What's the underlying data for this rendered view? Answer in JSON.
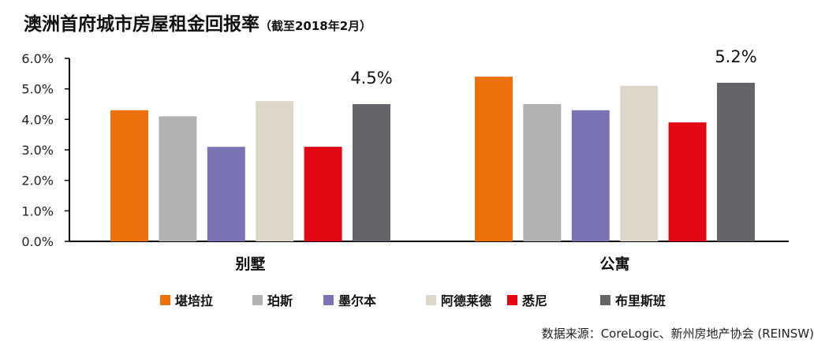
{
  "chart_data": {
    "type": "bar",
    "title": "澳洲首府城市房屋租金回报率",
    "subtitle": "（截至2018年2月）",
    "categories": [
      "别墅",
      "公寓"
    ],
    "series": [
      {
        "name": "堪培拉",
        "color": "#ee700b",
        "values": [
          4.3,
          5.4
        ]
      },
      {
        "name": "珀斯",
        "color": "#b1b2b4",
        "values": [
          4.1,
          4.5
        ]
      },
      {
        "name": "墨尔本",
        "color": "#7a74b5",
        "values": [
          3.1,
          4.3
        ]
      },
      {
        "name": "阿德莱德",
        "color": "#ddd7c9",
        "values": [
          4.6,
          5.1
        ]
      },
      {
        "name": "悉尼",
        "color": "#e30613",
        "values": [
          3.1,
          3.9
        ]
      },
      {
        "name": "布里斯班",
        "color": "#646569",
        "values": [
          4.5,
          5.2
        ]
      }
    ],
    "annotations": [
      "4.5%",
      "5.2%"
    ],
    "yticks": [
      "0.0%",
      "1.0%",
      "2.0%",
      "3.0%",
      "4.0%",
      "5.0%",
      "6.0%"
    ],
    "ylim": [
      0,
      6
    ],
    "unit": "%",
    "grid": false,
    "legend_position": "bottom",
    "source": "数据来源：CoreLogic、新州房地产协会 (REINSW)"
  }
}
